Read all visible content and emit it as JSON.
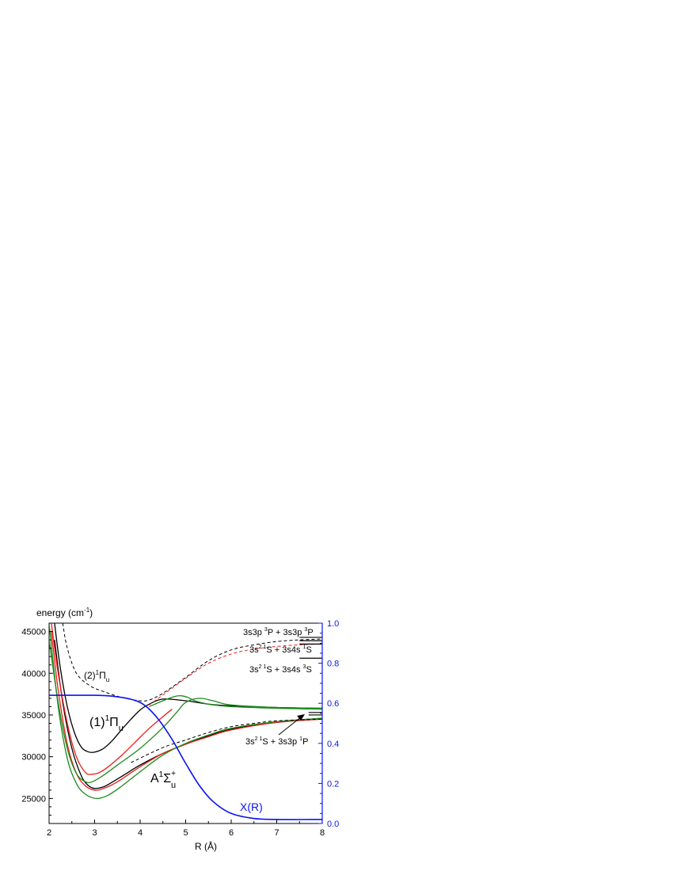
{
  "colors": {
    "black": "#000000",
    "red": "#ee1c1c",
    "green": "#1c8a1c",
    "blue": "#0a14f0"
  },
  "chart_data": {
    "type": "line",
    "xlabel": "R (Å)",
    "ylabel_left": "energy (cm",
    "ylabel_left_sup": "-1",
    "ylabel_left_tail": ")",
    "xlim": [
      2,
      8
    ],
    "ylim_left": [
      22000,
      46000
    ],
    "ylim_right": [
      0.0,
      1.0
    ],
    "x_ticks": [
      "2",
      "3",
      "4",
      "5",
      "6",
      "7",
      "8"
    ],
    "y_left_ticks": [
      "25000",
      "30000",
      "35000",
      "40000",
      "45000"
    ],
    "y_right_ticks": [
      "0.0",
      "0.2",
      "0.4",
      "0.6",
      "0.8",
      "1.0"
    ],
    "grid": false,
    "series": [
      {
        "color": "black",
        "style": "solid",
        "axis": "left",
        "points": [
          [
            2.12,
            46000
          ],
          [
            2.25,
            40500
          ],
          [
            2.4,
            36000
          ],
          [
            2.55,
            33000
          ],
          [
            2.7,
            31200
          ],
          [
            2.85,
            30600
          ],
          [
            3.0,
            30550
          ],
          [
            3.2,
            31000
          ],
          [
            3.4,
            32000
          ],
          [
            3.6,
            33300
          ],
          [
            3.8,
            34500
          ],
          [
            4.0,
            35600
          ],
          [
            4.2,
            36300
          ],
          [
            4.5,
            36900
          ],
          [
            5.0,
            36700
          ],
          [
            5.5,
            36300
          ],
          [
            6.0,
            36100
          ],
          [
            7.0,
            35900
          ],
          [
            8.0,
            35800
          ]
        ]
      },
      {
        "color": "black",
        "style": "solid",
        "axis": "left",
        "points": [
          [
            2.12,
            44000
          ],
          [
            2.3,
            36500
          ],
          [
            2.5,
            31000
          ],
          [
            2.7,
            27800
          ],
          [
            2.85,
            26600
          ],
          [
            3.0,
            26200
          ],
          [
            3.2,
            26400
          ],
          [
            3.4,
            27000
          ],
          [
            3.7,
            28000
          ],
          [
            4.0,
            29000
          ],
          [
            4.5,
            30400
          ],
          [
            5.0,
            31500
          ],
          [
            5.5,
            32500
          ],
          [
            6.0,
            33300
          ],
          [
            6.5,
            33800
          ],
          [
            7.0,
            34100
          ],
          [
            7.5,
            34400
          ],
          [
            8.0,
            34600
          ]
        ]
      },
      {
        "color": "red",
        "style": "solid",
        "axis": "left",
        "points": [
          [
            2.05,
            46000
          ],
          [
            2.2,
            40000
          ],
          [
            2.4,
            34000
          ],
          [
            2.6,
            30000
          ],
          [
            2.8,
            28100
          ],
          [
            2.95,
            27900
          ],
          [
            3.1,
            28100
          ],
          [
            3.3,
            28800
          ],
          [
            3.6,
            30200
          ],
          [
            3.9,
            31800
          ],
          [
            4.2,
            33400
          ],
          [
            4.5,
            34800
          ],
          [
            4.7,
            35700
          ]
        ]
      },
      {
        "color": "red",
        "style": "solid",
        "axis": "left",
        "points": [
          [
            2.05,
            45000
          ],
          [
            2.2,
            38000
          ],
          [
            2.4,
            31500
          ],
          [
            2.6,
            28000
          ],
          [
            2.8,
            26500
          ],
          [
            3.0,
            26000
          ],
          [
            3.2,
            26200
          ],
          [
            3.5,
            27000
          ],
          [
            4.0,
            28800
          ],
          [
            4.5,
            30400
          ],
          [
            5.0,
            31500
          ],
          [
            5.5,
            32400
          ],
          [
            6.0,
            33200
          ],
          [
            7.0,
            34100
          ],
          [
            8.0,
            34500
          ]
        ]
      },
      {
        "color": "green",
        "style": "solid",
        "axis": "left",
        "points": [
          [
            2.0,
            44000
          ],
          [
            2.2,
            36500
          ],
          [
            2.4,
            31000
          ],
          [
            2.6,
            28000
          ],
          [
            2.8,
            27000
          ],
          [
            2.95,
            27000
          ],
          [
            3.2,
            27800
          ],
          [
            3.5,
            29000
          ],
          [
            4.0,
            31000
          ],
          [
            4.5,
            33500
          ],
          [
            4.8,
            35300
          ],
          [
            5.0,
            36500
          ],
          [
            5.3,
            37000
          ],
          [
            5.6,
            36700
          ],
          [
            6.0,
            36200
          ],
          [
            7.0,
            35900
          ],
          [
            8.0,
            35800
          ]
        ]
      },
      {
        "color": "green",
        "style": "solid",
        "axis": "left",
        "points": [
          [
            2.0,
            46000
          ],
          [
            2.2,
            36000
          ],
          [
            2.4,
            29800
          ],
          [
            2.6,
            26800
          ],
          [
            2.8,
            25500
          ],
          [
            3.05,
            25000
          ],
          [
            3.3,
            25400
          ],
          [
            3.6,
            26500
          ],
          [
            4.0,
            28200
          ],
          [
            4.5,
            30200
          ],
          [
            5.0,
            31600
          ],
          [
            5.5,
            32600
          ],
          [
            6.0,
            33400
          ],
          [
            7.0,
            34200
          ],
          [
            8.0,
            34600
          ]
        ]
      },
      {
        "color": "green",
        "style": "solid",
        "axis": "left",
        "points": [
          [
            4.2,
            36000
          ],
          [
            4.5,
            36700
          ],
          [
            4.75,
            37200
          ],
          [
            4.9,
            37300
          ],
          [
            5.05,
            37100
          ],
          [
            5.2,
            36700
          ],
          [
            5.5,
            36300
          ],
          [
            6.0,
            36000
          ],
          [
            7.0,
            35800
          ],
          [
            8.0,
            35700
          ]
        ]
      },
      {
        "color": "black",
        "style": "dashed",
        "axis": "left",
        "points": [
          [
            2.3,
            46000
          ],
          [
            2.4,
            43000
          ],
          [
            2.6,
            40000
          ],
          [
            2.9,
            38500
          ],
          [
            3.2,
            37800
          ],
          [
            3.6,
            37100
          ],
          [
            4.0,
            36700
          ],
          [
            4.2,
            36800
          ],
          [
            4.5,
            37600
          ],
          [
            5.0,
            39500
          ],
          [
            5.5,
            41500
          ],
          [
            6.0,
            42800
          ],
          [
            6.5,
            43400
          ],
          [
            7.0,
            43800
          ],
          [
            7.5,
            44000
          ],
          [
            8.0,
            44100
          ]
        ]
      },
      {
        "color": "red",
        "style": "dashed",
        "axis": "left",
        "points": [
          [
            4.2,
            36200
          ],
          [
            4.5,
            37400
          ],
          [
            5.0,
            39400
          ],
          [
            5.5,
            41200
          ],
          [
            6.0,
            42300
          ],
          [
            6.5,
            42900
          ],
          [
            7.0,
            43200
          ],
          [
            7.5,
            43400
          ],
          [
            8.0,
            43500
          ]
        ]
      },
      {
        "color": "black",
        "style": "dashed",
        "axis": "left",
        "points": [
          [
            3.8,
            29300
          ],
          [
            4.5,
            31100
          ],
          [
            5.0,
            32000
          ],
          [
            5.5,
            32900
          ],
          [
            6.0,
            33600
          ],
          [
            6.5,
            34000
          ],
          [
            7.0,
            34300
          ],
          [
            8.0,
            34500
          ]
        ]
      },
      {
        "color": "blue",
        "style": "solid",
        "axis": "right",
        "points": [
          [
            2.0,
            0.64
          ],
          [
            3.0,
            0.64
          ],
          [
            3.4,
            0.635
          ],
          [
            3.8,
            0.62
          ],
          [
            4.1,
            0.59
          ],
          [
            4.4,
            0.52
          ],
          [
            4.7,
            0.42
          ],
          [
            5.0,
            0.3
          ],
          [
            5.3,
            0.19
          ],
          [
            5.6,
            0.11
          ],
          [
            6.0,
            0.05
          ],
          [
            6.5,
            0.025
          ],
          [
            7.0,
            0.02
          ],
          [
            8.0,
            0.02
          ]
        ]
      }
    ],
    "asymptotes": [
      {
        "y": 44300,
        "x0": 7.5,
        "x1": 8.0
      },
      {
        "y": 43900,
        "x0": 7.5,
        "x1": 8.0
      },
      {
        "y": 43500,
        "x0": 7.5,
        "x1": 8.0
      },
      {
        "y": 41800,
        "x0": 7.5,
        "x1": 8.0
      },
      {
        "y": 35300,
        "x0": 7.7,
        "x1": 8.0
      },
      {
        "y": 35000,
        "x0": 7.7,
        "x1": 8.0
      }
    ],
    "annotations": {
      "label_2pi": {
        "main": "(2)",
        "sup": "1",
        "sym": "Π",
        "sub": "u"
      },
      "label_1pi": {
        "main": "(1)",
        "sup": "1",
        "sym": "Π",
        "sub": "u"
      },
      "label_a": {
        "main": "A",
        "sup": "1",
        "sym": "Σ",
        "sup2": "+",
        "sub": "u"
      },
      "label_xr": "X(R)",
      "asym_1": {
        "a": "3s3p ",
        "a_sup": "3",
        "b": "P + 3s3p ",
        "b_sup": "3",
        "c": "P"
      },
      "asym_2": {
        "a": "3s",
        "a_sup": "2 1",
        "b": "S + 3s4s ",
        "b_sup": "1",
        "c": "S"
      },
      "asym_3": {
        "a": "3s",
        "a_sup": "2 1",
        "b": "S + 3s4s ",
        "b_sup": "3",
        "c": "S"
      },
      "asym_4": {
        "a": "3s",
        "a_sup": "2 1",
        "b": "S + 3s3p ",
        "b_sup": "1",
        "c": "P"
      }
    }
  }
}
